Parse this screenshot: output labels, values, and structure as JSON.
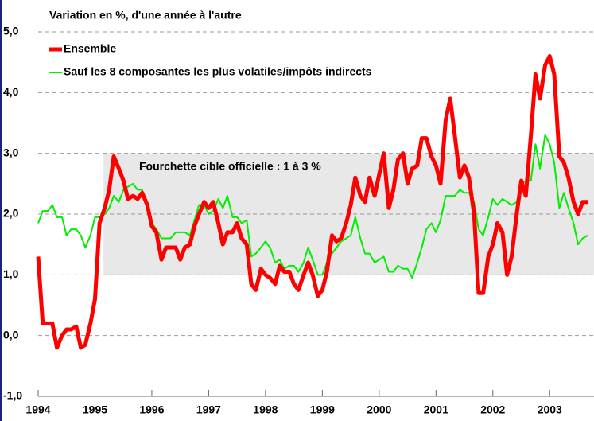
{
  "chart_data": {
    "type": "line",
    "title": "Variation en %, d'une année à l'autre",
    "annotation": "Fourchette cible officielle : 1 à 3 %",
    "band_start": 1995.15,
    "band_range": [
      1,
      3
    ],
    "band_color": "#e8e8e8",
    "x": [
      1994.0,
      1994.08,
      1994.17,
      1994.25,
      1994.33,
      1994.42,
      1994.5,
      1994.58,
      1994.67,
      1994.75,
      1994.83,
      1994.92,
      1995.0,
      1995.08,
      1995.17,
      1995.25,
      1995.33,
      1995.42,
      1995.5,
      1995.58,
      1995.67,
      1995.75,
      1995.83,
      1995.92,
      1996.0,
      1996.08,
      1996.17,
      1996.25,
      1996.33,
      1996.42,
      1996.5,
      1996.58,
      1996.67,
      1996.75,
      1996.83,
      1996.92,
      1997.0,
      1997.08,
      1997.17,
      1997.25,
      1997.33,
      1997.42,
      1997.5,
      1997.58,
      1997.67,
      1997.75,
      1997.83,
      1997.92,
      1998.0,
      1998.08,
      1998.17,
      1998.25,
      1998.33,
      1998.42,
      1998.5,
      1998.58,
      1998.67,
      1998.75,
      1998.83,
      1998.92,
      1999.0,
      1999.08,
      1999.17,
      1999.25,
      1999.33,
      1999.42,
      1999.5,
      1999.58,
      1999.67,
      1999.75,
      1999.83,
      1999.92,
      2000.0,
      2000.08,
      2000.17,
      2000.25,
      2000.33,
      2000.42,
      2000.5,
      2000.58,
      2000.67,
      2000.75,
      2000.83,
      2000.92,
      2001.0,
      2001.08,
      2001.17,
      2001.25,
      2001.33,
      2001.42,
      2001.5,
      2001.58,
      2001.67,
      2001.75,
      2001.83,
      2001.92,
      2002.0,
      2002.08,
      2002.17,
      2002.25,
      2002.33,
      2002.42,
      2002.5,
      2002.58,
      2002.67,
      2002.75,
      2002.83,
      2002.92,
      2003.0,
      2003.08,
      2003.17,
      2003.25,
      2003.33,
      2003.42,
      2003.5,
      2003.58,
      2003.67
    ],
    "series": [
      {
        "name": "Ensemble",
        "color": "#ff0000",
        "width": 5,
        "values": [
          1.3,
          0.2,
          0.2,
          0.2,
          -0.2,
          0.0,
          0.1,
          0.1,
          0.15,
          -0.2,
          -0.15,
          0.2,
          0.6,
          1.85,
          2.1,
          2.4,
          2.95,
          2.75,
          2.55,
          2.25,
          2.3,
          2.25,
          2.35,
          2.15,
          1.8,
          1.7,
          1.25,
          1.45,
          1.45,
          1.45,
          1.25,
          1.45,
          1.5,
          1.8,
          2.0,
          2.2,
          2.1,
          2.2,
          1.85,
          1.5,
          1.7,
          1.7,
          1.85,
          1.6,
          1.5,
          0.85,
          0.75,
          1.1,
          1.0,
          0.95,
          0.85,
          1.15,
          1.05,
          1.05,
          0.85,
          0.75,
          1.0,
          1.2,
          1.0,
          0.65,
          0.75,
          1.05,
          1.65,
          1.55,
          1.6,
          1.85,
          2.15,
          2.6,
          2.3,
          2.2,
          2.6,
          2.3,
          2.65,
          3.0,
          2.1,
          2.4,
          2.9,
          3.0,
          2.5,
          2.75,
          2.8,
          3.25,
          3.25,
          2.95,
          2.8,
          2.5,
          3.55,
          3.9,
          3.3,
          2.6,
          2.8,
          2.6,
          2.0,
          0.7,
          0.7,
          1.3,
          1.5,
          1.85,
          1.7,
          1.0,
          1.3,
          2.0,
          2.55,
          2.3,
          3.3,
          4.3,
          3.9,
          4.45,
          4.6,
          4.3,
          2.95,
          2.85,
          2.6,
          2.2,
          2.0,
          2.2,
          2.2
        ]
      },
      {
        "name": "Sauf les 8 composantes les plus volatiles/impôts indirects",
        "color": "#00ee00",
        "width": 2,
        "values": [
          1.85,
          2.05,
          2.05,
          2.15,
          1.95,
          1.95,
          1.65,
          1.75,
          1.75,
          1.65,
          1.45,
          1.65,
          1.95,
          1.95,
          2.0,
          2.1,
          2.3,
          2.2,
          2.4,
          2.45,
          2.5,
          2.4,
          2.4,
          2.1,
          1.85,
          1.75,
          1.6,
          1.6,
          1.6,
          1.7,
          1.7,
          1.7,
          1.65,
          1.9,
          2.15,
          2.15,
          2.0,
          2.05,
          2.25,
          2.1,
          2.3,
          1.95,
          1.95,
          1.85,
          1.9,
          1.3,
          1.35,
          1.45,
          1.55,
          1.45,
          1.2,
          1.25,
          1.1,
          1.15,
          1.15,
          1.05,
          1.2,
          1.45,
          1.25,
          1.0,
          1.0,
          1.2,
          1.35,
          1.45,
          1.55,
          1.6,
          1.65,
          1.95,
          1.6,
          1.35,
          1.35,
          1.2,
          1.25,
          1.3,
          1.05,
          1.05,
          1.15,
          1.1,
          1.1,
          0.95,
          1.2,
          1.45,
          1.75,
          1.85,
          1.7,
          1.9,
          2.3,
          2.3,
          2.3,
          2.4,
          2.35,
          2.35,
          2.2,
          1.75,
          1.65,
          1.95,
          2.25,
          2.15,
          2.25,
          2.2,
          2.15,
          2.2,
          2.5,
          2.55,
          2.55,
          3.15,
          2.75,
          3.3,
          3.15,
          2.85,
          2.1,
          2.35,
          2.1,
          1.85,
          1.5,
          1.6,
          1.65
        ]
      }
    ],
    "xlim": [
      1994,
      2003.78
    ],
    "xticks": [
      1994,
      1995,
      1996,
      1997,
      1998,
      1999,
      2000,
      2001,
      2002,
      2003
    ],
    "ylim": [
      -1,
      5
    ],
    "yticks": [
      {
        "value": -1,
        "label": "-1,0"
      },
      {
        "value": 0,
        "label": "0,0"
      },
      {
        "value": 1,
        "label": "1,0"
      },
      {
        "value": 2,
        "label": "2,0"
      },
      {
        "value": 3,
        "label": "3,0"
      },
      {
        "value": 4,
        "label": "4,0"
      },
      {
        "value": 5,
        "label": "5,0"
      }
    ],
    "grid": true
  }
}
